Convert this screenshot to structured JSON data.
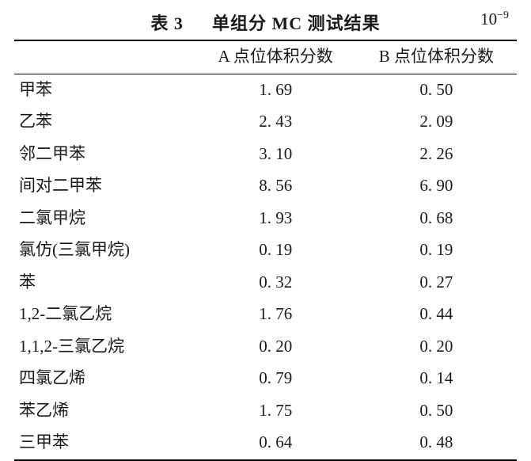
{
  "title": {
    "label": "表 3",
    "text": "单组分 MC 测试结果",
    "unit_base": "10",
    "unit_exp": "−9",
    "title_fontsize": 22,
    "title_fontweight": "bold"
  },
  "table": {
    "type": "table",
    "background_color": "#ffffff",
    "text_color": "#1a1a1a",
    "border_color": "#000000",
    "top_rule_width": 2,
    "mid_rule_width": 1,
    "bottom_rule_width": 2,
    "body_fontsize": 21,
    "columns": [
      {
        "key": "name",
        "label": "",
        "align": "left",
        "width_pct": 36
      },
      {
        "key": "a",
        "label": "A 点位体积分数",
        "align": "center",
        "width_pct": 32
      },
      {
        "key": "b",
        "label": "B 点位体积分数",
        "align": "center",
        "width_pct": 32
      }
    ],
    "rows": [
      {
        "name": "甲苯",
        "a": "1. 69",
        "b": "0. 50"
      },
      {
        "name": "乙苯",
        "a": "2. 43",
        "b": "2. 09"
      },
      {
        "name": "邻二甲苯",
        "a": "3. 10",
        "b": "2. 26"
      },
      {
        "name": "间对二甲苯",
        "a": "8. 56",
        "b": "6. 90"
      },
      {
        "name": "二氯甲烷",
        "a": "1. 93",
        "b": "0. 68"
      },
      {
        "name": "氯仿(三氯甲烷)",
        "a": "0. 19",
        "b": "0. 19"
      },
      {
        "name": "苯",
        "a": "0. 32",
        "b": "0. 27"
      },
      {
        "name": "1,2-二氯乙烷",
        "a": "1. 76",
        "b": "0. 44"
      },
      {
        "name": "1,1,2-三氯乙烷",
        "a": "0. 20",
        "b": "0. 20"
      },
      {
        "name": "四氯乙烯",
        "a": "0. 79",
        "b": "0. 14"
      },
      {
        "name": "苯乙烯",
        "a": "1. 75",
        "b": "0. 50"
      },
      {
        "name": "三甲苯",
        "a": "0. 64",
        "b": "0. 48"
      }
    ]
  }
}
